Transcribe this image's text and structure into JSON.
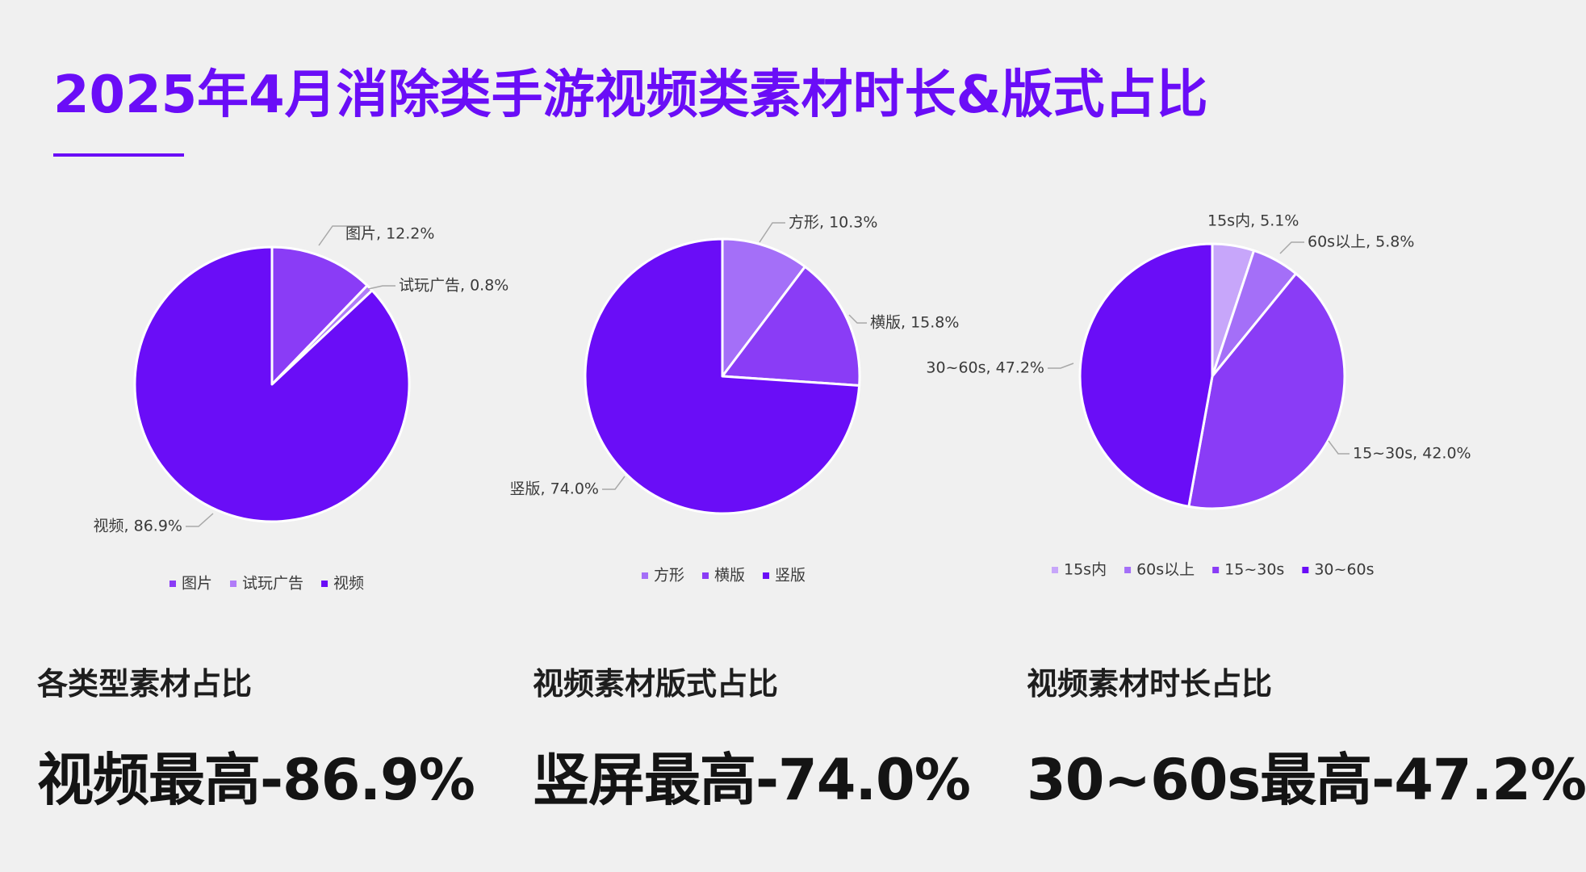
{
  "title": "2025年4月消除类手游视频类素材时长&版式占比",
  "chart_data": [
    {
      "type": "pie",
      "name": "各类型素材占比",
      "slices": [
        {
          "label": "图片",
          "value": 12.2,
          "value_text": "12.2%",
          "color": "#8a3cf6"
        },
        {
          "label": "试玩广告",
          "value": 0.8,
          "value_text": "0.8%",
          "color": "#b07cf8"
        },
        {
          "label": "视频",
          "value": 86.9,
          "value_text": "86.9%",
          "color": "#6a0df7"
        }
      ],
      "legend_position": "bottom"
    },
    {
      "type": "pie",
      "name": "视频素材版式占比",
      "slices": [
        {
          "label": "方形",
          "value": 10.3,
          "value_text": "10.3%",
          "color": "#a46ff8"
        },
        {
          "label": "横版",
          "value": 15.8,
          "value_text": "15.8%",
          "color": "#8a3cf6"
        },
        {
          "label": "竖版",
          "value": 74.0,
          "value_text": "74.0%",
          "color": "#6a0df7"
        }
      ],
      "legend_position": "bottom"
    },
    {
      "type": "pie",
      "name": "视频素材时长占比",
      "slices": [
        {
          "label": "15s内",
          "value": 5.1,
          "value_text": "5.1%",
          "color": "#c7a6fa"
        },
        {
          "label": "60s以上",
          "value": 5.8,
          "value_text": "5.8%",
          "color": "#a46ff8"
        },
        {
          "label": "15~30s",
          "value": 42.0,
          "value_text": "42.0%",
          "color": "#8a3cf6"
        },
        {
          "label": "30~60s",
          "value": 47.2,
          "value_text": "47.2%",
          "color": "#6a0df7"
        }
      ],
      "legend_position": "bottom"
    }
  ],
  "summaries": [
    {
      "heading": "各类型素材占比",
      "highlight": "视频最高-86.9%"
    },
    {
      "heading": "视频素材版式占比",
      "highlight": "竖屏最高-74.0%"
    },
    {
      "heading": "视频素材时长占比",
      "highlight": "30~60s最高-47.2%"
    }
  ]
}
